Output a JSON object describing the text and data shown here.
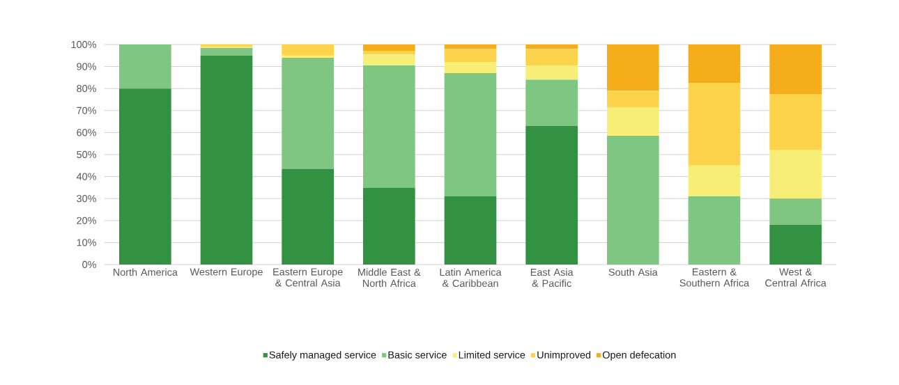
{
  "chart_data": {
    "type": "bar",
    "stacked": true,
    "categories": [
      "North America",
      "Western Europe",
      "Eastern Europe & Central Asia",
      "Middle East & North Africa",
      "Latin America & Caribbean",
      "East Asia & Pacific",
      "South Asia",
      "Eastern & Southern Africa",
      "West & Central Africa"
    ],
    "series": [
      {
        "name": "Safely managed service",
        "color": "#339142",
        "values": [
          80,
          95,
          43.5,
          35,
          31,
          63,
          0,
          0,
          18
        ]
      },
      {
        "name": "Basic service",
        "color": "#80c683",
        "values": [
          20,
          3.5,
          50.5,
          55.5,
          56,
          21,
          58.5,
          31,
          12
        ]
      },
      {
        "name": "Limited service",
        "color": "#f7ee77",
        "values": [
          0,
          0.5,
          1,
          5,
          5,
          6.5,
          13,
          14,
          22
        ]
      },
      {
        "name": "Unimproved",
        "color": "#fcd34a",
        "values": [
          0,
          1,
          5,
          1.5,
          6,
          7.5,
          7.5,
          37.5,
          25.5
        ]
      },
      {
        "name": "Open defecation",
        "color": "#f6ad1c",
        "values": [
          0,
          0,
          0,
          3,
          2,
          2,
          21,
          17.5,
          22.5
        ]
      }
    ],
    "ylim": [
      0,
      100
    ],
    "yticks": [
      {
        "value": 0,
        "label": "0%"
      },
      {
        "value": 10,
        "label": "10%"
      },
      {
        "value": 20,
        "label": "20%"
      },
      {
        "value": 30,
        "label": "30%"
      },
      {
        "value": 40,
        "label": "40%"
      },
      {
        "value": 50,
        "label": "50%"
      },
      {
        "value": 60,
        "label": "60%"
      },
      {
        "value": 70,
        "label": "70%"
      },
      {
        "value": 80,
        "label": "80%"
      },
      {
        "value": 90,
        "label": "90%"
      },
      {
        "value": 100,
        "label": "100%"
      }
    ],
    "grid": "y",
    "legend": "bottom"
  }
}
